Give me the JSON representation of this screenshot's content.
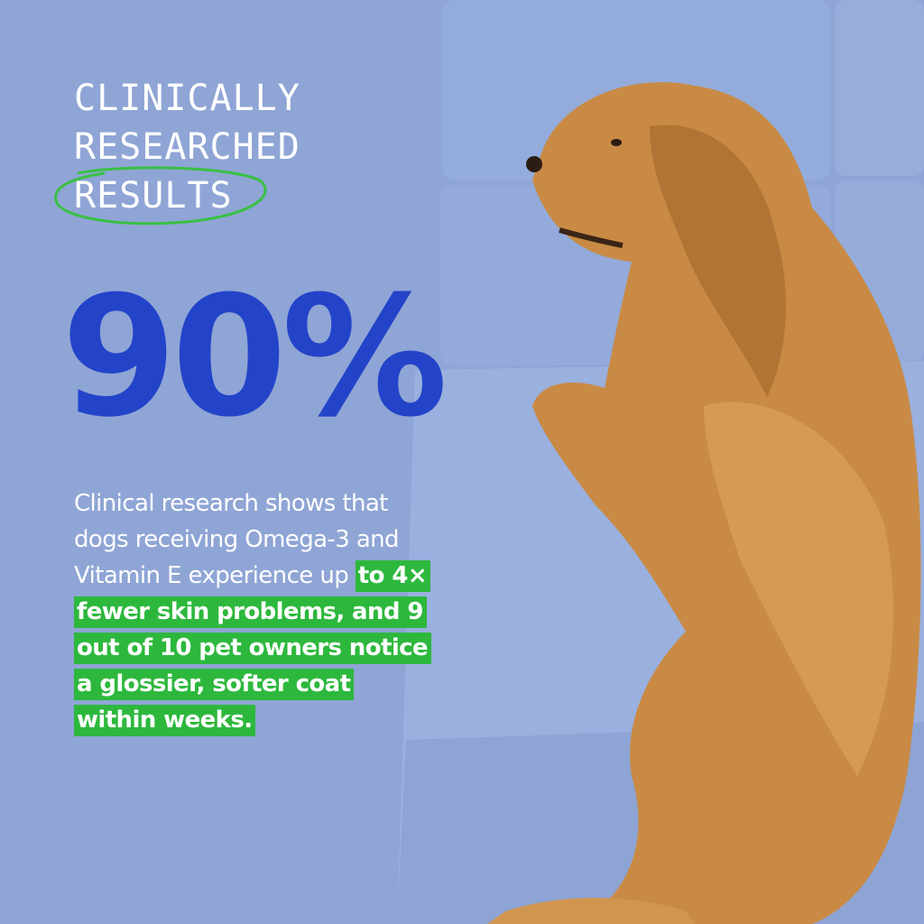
{
  "heading": {
    "lines": [
      "CLINICALLY",
      "RESEARCHED",
      "RESULTS"
    ]
  },
  "stat": {
    "value": "90%"
  },
  "body": {
    "plain": "Clinical research shows that dogs receiving Omega-3 and Vitamin E experience up",
    "highlight": "to 4× fewer skin problems, and 9 out of 10 pet owners notice a glossier, softer coat within weeks."
  },
  "colors": {
    "background": "#8fa5d5",
    "stat": "#2344c9",
    "highlight": "#2db83d",
    "text": "#ffffff",
    "dog": "#c98a45"
  }
}
